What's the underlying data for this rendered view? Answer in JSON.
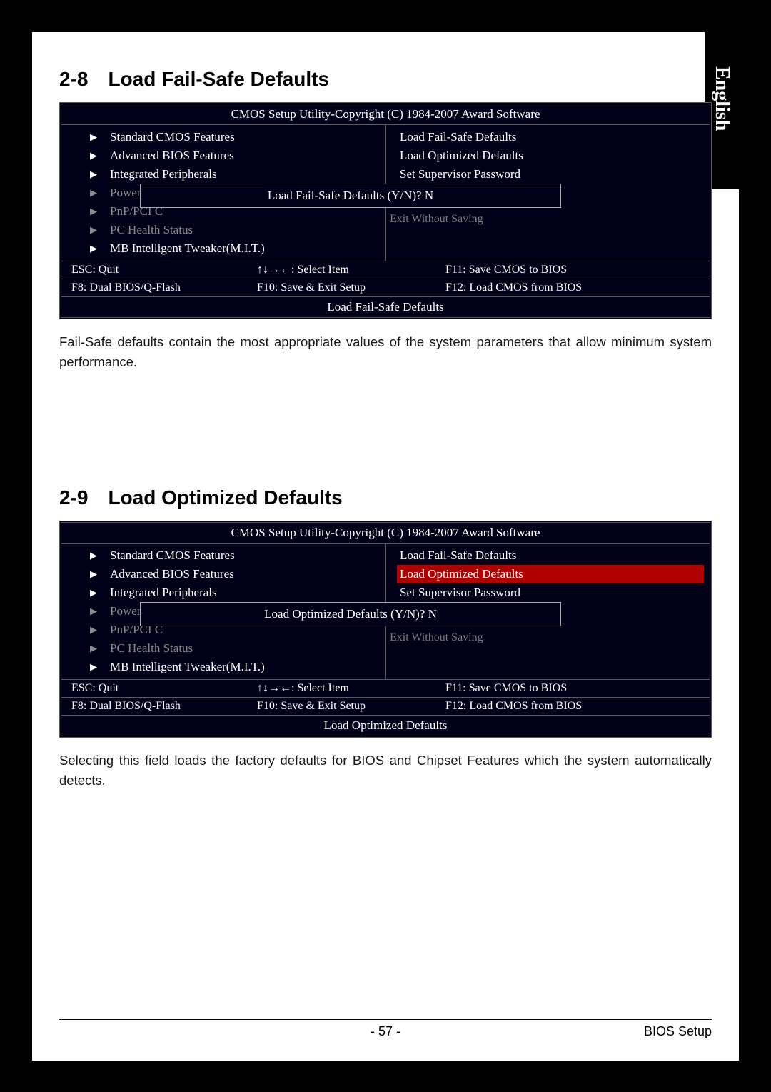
{
  "sideTab": "English",
  "section1": {
    "num": "2-8",
    "title": "Load Fail-Safe Defaults",
    "body": "Fail-Safe defaults contain the most appropriate values of the system parameters that allow minimum system performance."
  },
  "section2": {
    "num": "2-9",
    "title": "Load Optimized Defaults",
    "body": "Selecting this field loads the factory defaults for BIOS and Chipset Features which the system automatically detects."
  },
  "bios1": {
    "title": "CMOS Setup Utility-Copyright (C) 1984-2007 Award Software",
    "leftItems": [
      {
        "label": "Standard CMOS Features",
        "grey": false
      },
      {
        "label": "Advanced BIOS Features",
        "grey": false
      },
      {
        "label": "Integrated Peripherals",
        "grey": false
      },
      {
        "label": "Power Ma",
        "grey": true
      },
      {
        "label": "PnP/PCI C",
        "grey": true
      },
      {
        "label": "PC Health Status",
        "grey": true
      },
      {
        "label": "MB Intelligent Tweaker(M.I.T.)",
        "grey": false
      }
    ],
    "rightItems": [
      {
        "label": "Load Fail-Safe Defaults",
        "highlight": false
      },
      {
        "label": "Load Optimized Defaults",
        "highlight": false
      },
      {
        "label": "Set Supervisor Password",
        "highlight": false
      }
    ],
    "behind": "Exit Without Saving",
    "popup": "Load Fail-Safe Defaults (Y/N)? N",
    "footer": {
      "r1c1": "ESC: Quit",
      "r1c2": "↑↓→←: Select Item",
      "r1c3": "F11: Save CMOS to BIOS",
      "r2c1": "F8: Dual BIOS/Q-Flash",
      "r2c2": "F10: Save & Exit Setup",
      "r2c3": "F12: Load CMOS from BIOS"
    },
    "status": "Load Fail-Safe Defaults"
  },
  "bios2": {
    "title": "CMOS Setup Utility-Copyright (C) 1984-2007 Award Software",
    "leftItems": [
      {
        "label": "Standard CMOS Features",
        "grey": false
      },
      {
        "label": "Advanced BIOS Features",
        "grey": false
      },
      {
        "label": "Integrated Peripherals",
        "grey": false
      },
      {
        "label": "Power Ma",
        "grey": true
      },
      {
        "label": "PnP/PCI C",
        "grey": true
      },
      {
        "label": "PC Health Status",
        "grey": true
      },
      {
        "label": "MB Intelligent Tweaker(M.I.T.)",
        "grey": false
      }
    ],
    "rightItems": [
      {
        "label": "Load Fail-Safe Defaults",
        "highlight": false
      },
      {
        "label": "Load Optimized Defaults",
        "highlight": true
      },
      {
        "label": "Set Supervisor Password",
        "highlight": false
      }
    ],
    "behind": "Exit Without Saving",
    "popup": "Load Optimized Defaults (Y/N)? N",
    "footer": {
      "r1c1": "ESC: Quit",
      "r1c2": "↑↓→←: Select Item",
      "r1c3": "F11: Save CMOS to BIOS",
      "r2c1": "F8: Dual BIOS/Q-Flash",
      "r2c2": "F10: Save & Exit Setup",
      "r2c3": "F12: Load CMOS from BIOS"
    },
    "status": "Load Optimized Defaults"
  },
  "pageFooter": {
    "pageNum": "- 57 -",
    "label": "BIOS Setup"
  }
}
